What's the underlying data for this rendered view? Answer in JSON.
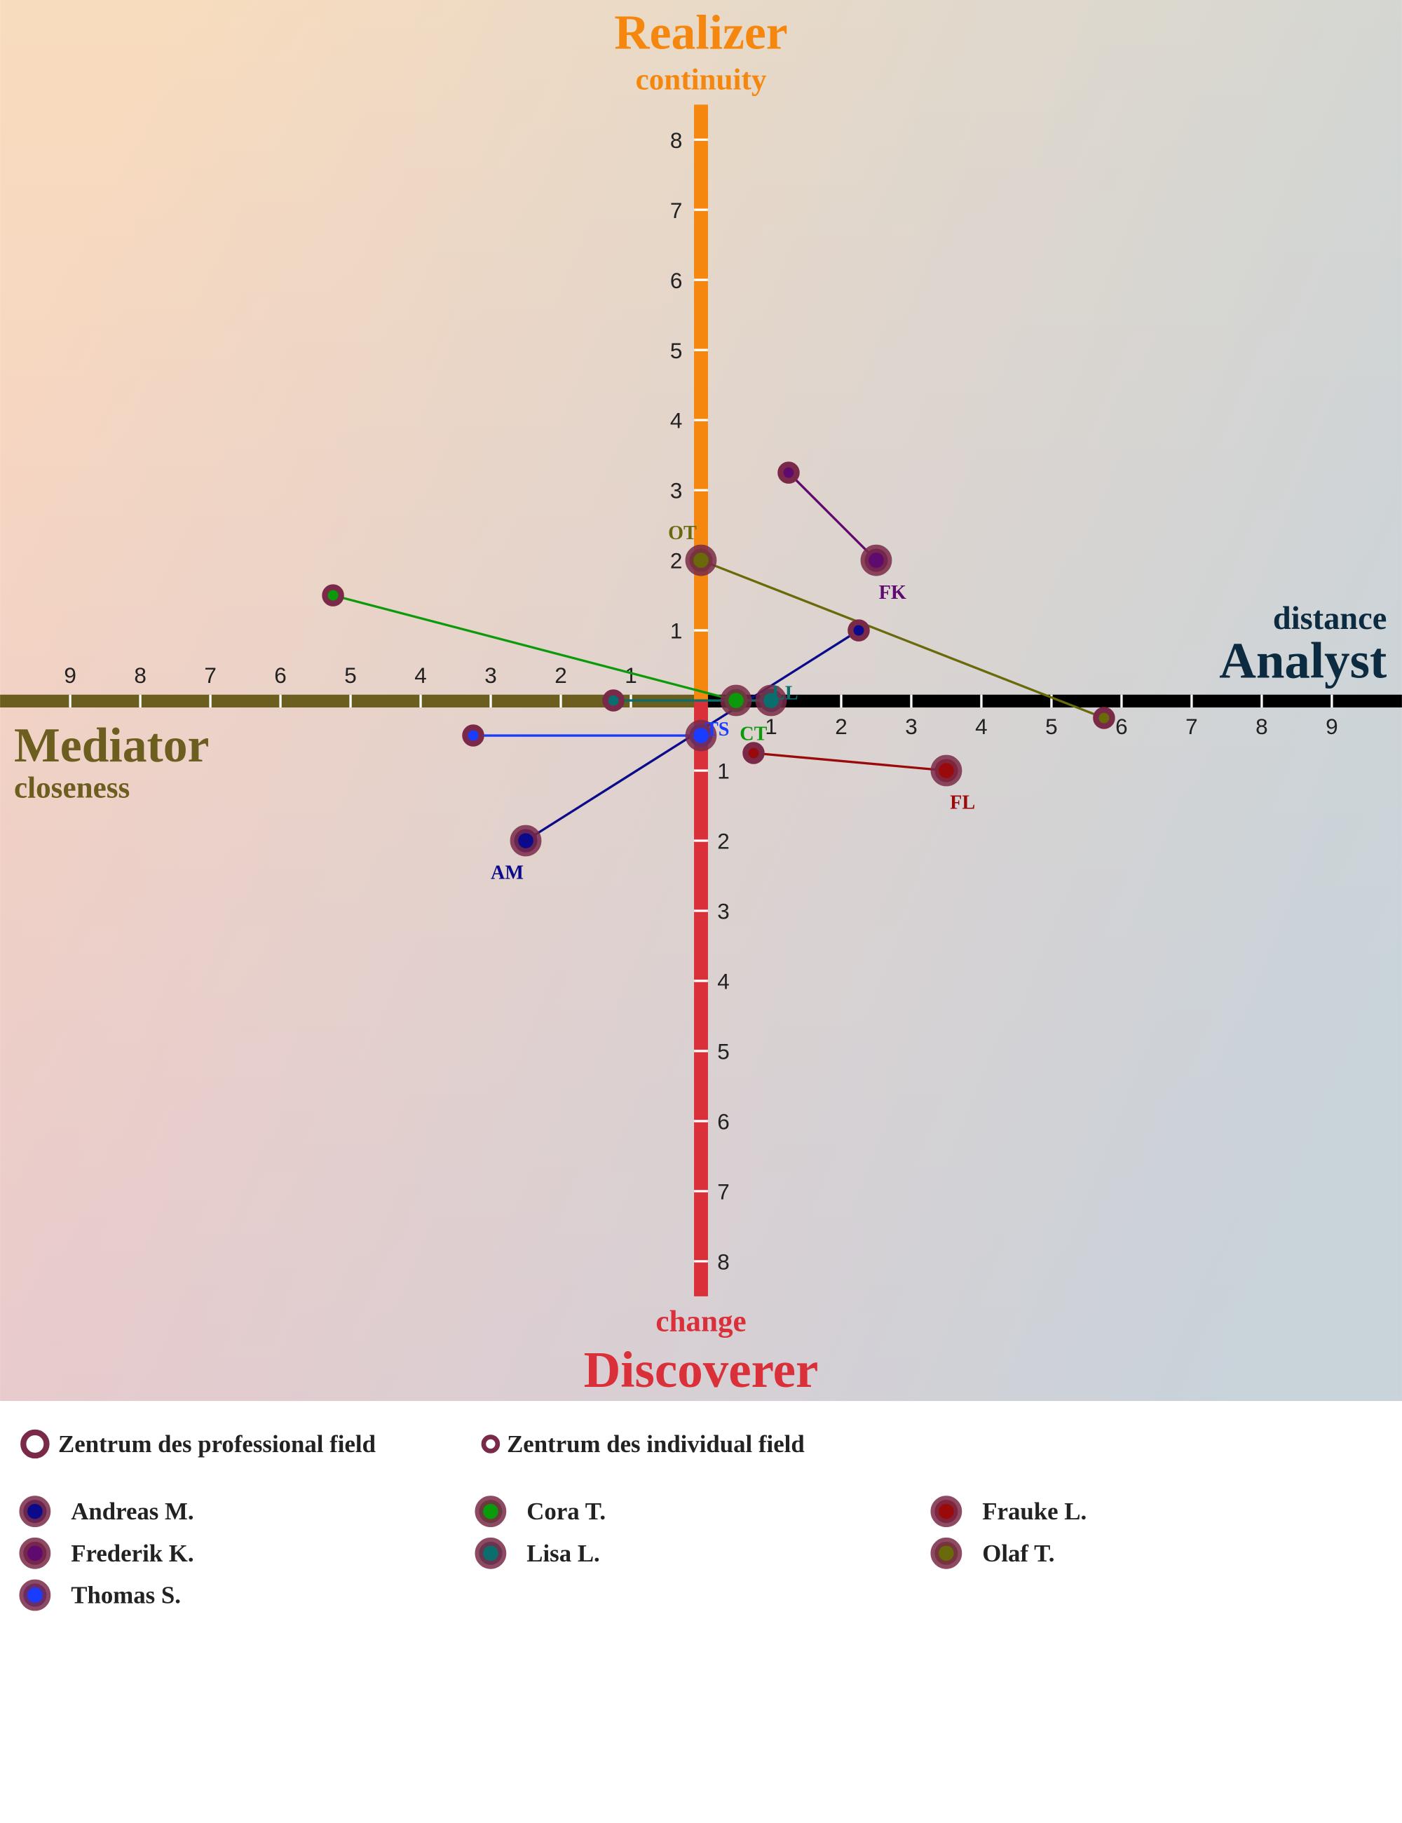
{
  "chart_data": {
    "type": "quadrant",
    "axes": {
      "top": {
        "title": "Realizer",
        "subtitle": "continuity",
        "color": "#f5870f"
      },
      "bottom": {
        "title": "Discoverer",
        "subtitle": "change",
        "color": "#d9303a"
      },
      "left": {
        "title": "Mediator",
        "subtitle": "closeness",
        "color": "#6b5e1e"
      },
      "right": {
        "title": "Analyst",
        "subtitle": "distance",
        "color": "#0d2b40",
        "bar_color": "#000000"
      }
    },
    "xlim": [
      -10,
      10
    ],
    "ylim": [
      -8.5,
      8.5
    ],
    "xticks": [
      {
        "value": -9,
        "label": "9"
      },
      {
        "value": -8,
        "label": "8"
      },
      {
        "value": -7,
        "label": "7"
      },
      {
        "value": -6,
        "label": "6"
      },
      {
        "value": -5,
        "label": "5"
      },
      {
        "value": -4,
        "label": "4"
      },
      {
        "value": -3,
        "label": "3"
      },
      {
        "value": -2,
        "label": "2"
      },
      {
        "value": -1,
        "label": "1"
      },
      1,
      2,
      3,
      4,
      5,
      6,
      7,
      8,
      9
    ],
    "yticks": [
      {
        "value": -8,
        "label": "8"
      },
      {
        "value": -7,
        "label": "7"
      },
      {
        "value": -6,
        "label": "6"
      },
      {
        "value": -5,
        "label": "5"
      },
      {
        "value": -4,
        "label": "4"
      },
      {
        "value": -3,
        "label": "3"
      },
      {
        "value": -2,
        "label": "2"
      },
      {
        "value": -1,
        "label": "1"
      },
      1,
      2,
      3,
      4,
      5,
      6,
      7,
      8
    ],
    "legend": {
      "professional": "Zentrum des professional field",
      "individual": "Zentrum des individual field"
    },
    "ring_color": "#7a2a48",
    "series": [
      {
        "name": "Andreas M.",
        "label": "AM",
        "color": "#0a0a8a",
        "x": [
          -2.5,
          2.25
        ],
        "y": [
          -2,
          1
        ]
      },
      {
        "name": "Cora T.",
        "label": "CT",
        "color": "#0a9a0a",
        "x": [
          0.5,
          -5.25
        ],
        "y": [
          0,
          1.5
        ]
      },
      {
        "name": "Frauke L.",
        "label": "FL",
        "color": "#9a0a0a",
        "x": [
          3.5,
          0.75
        ],
        "y": [
          -1,
          -0.75
        ]
      },
      {
        "name": "Frederik K.",
        "label": "FK",
        "color": "#5e0a6e",
        "x": [
          2.5,
          1.25
        ],
        "y": [
          2,
          3.25
        ]
      },
      {
        "name": "Lisa L.",
        "label": "LL",
        "color": "#0a6e6e",
        "x": [
          1,
          -1.25
        ],
        "y": [
          0,
          0
        ]
      },
      {
        "name": "Olaf T.",
        "label": "OT",
        "color": "#6a6a0a",
        "x": [
          0,
          5.75
        ],
        "y": [
          2,
          -0.25
        ]
      },
      {
        "name": "Thomas S.",
        "label": "TS",
        "color": "#1a3cff",
        "x": [
          0,
          -3.25
        ],
        "y": [
          -0.5,
          -0.5
        ]
      }
    ]
  }
}
